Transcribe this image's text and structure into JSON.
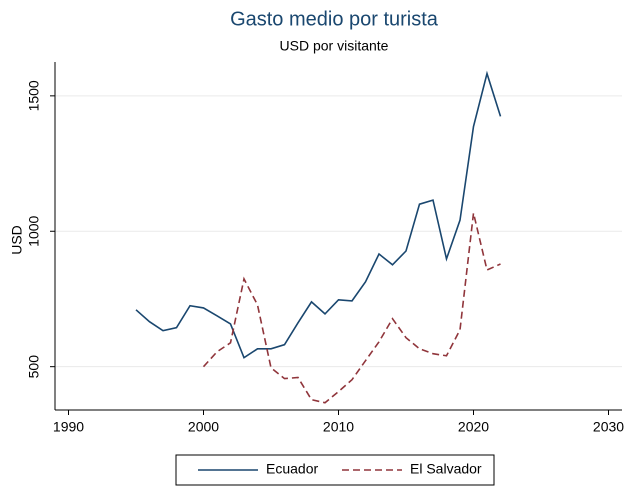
{
  "chart_data": {
    "type": "line",
    "title": "Gasto medio por turista",
    "subtitle": "USD por visitante",
    "y_label": "USD",
    "xlim": [
      1989,
      2031
    ],
    "xticks": [
      1990,
      2000,
      2010,
      2020,
      2030
    ],
    "ylim": [
      340,
      1625
    ],
    "yticks": [
      500,
      1000,
      1500
    ],
    "grid": true,
    "legend": "bottom",
    "series": [
      {
        "name": "Ecuador",
        "color": "#1a476f",
        "dash": false,
        "x": [
          1995,
          1996,
          1997,
          1998,
          1999,
          2000,
          2001,
          2002,
          2003,
          2004,
          2005,
          2006,
          2007,
          2008,
          2009,
          2010,
          2011,
          2012,
          2013,
          2014,
          2015,
          2016,
          2017,
          2018,
          2019,
          2020,
          2021,
          2022
        ],
        "values": [
          710,
          666,
          633,
          644,
          725,
          717,
          688,
          658,
          533,
          566,
          566,
          581,
          662,
          739,
          695,
          747,
          743,
          813,
          916,
          876,
          927,
          1100,
          1115,
          898,
          1041,
          1387,
          1582,
          1424
        ]
      },
      {
        "name": "El Salvador",
        "color": "#90353b",
        "dash": true,
        "x": [
          2000,
          2001,
          2002,
          2003,
          2004,
          2005,
          2006,
          2007,
          2008,
          2009,
          2010,
          2011,
          2012,
          2013,
          2014,
          2015,
          2016,
          2017,
          2018,
          2019,
          2020,
          2021,
          2022
        ],
        "values": [
          500,
          555,
          588,
          824,
          728,
          496,
          456,
          460,
          378,
          367,
          408,
          452,
          522,
          592,
          677,
          607,
          566,
          548,
          540,
          636,
          1067,
          857,
          879
        ]
      }
    ]
  }
}
